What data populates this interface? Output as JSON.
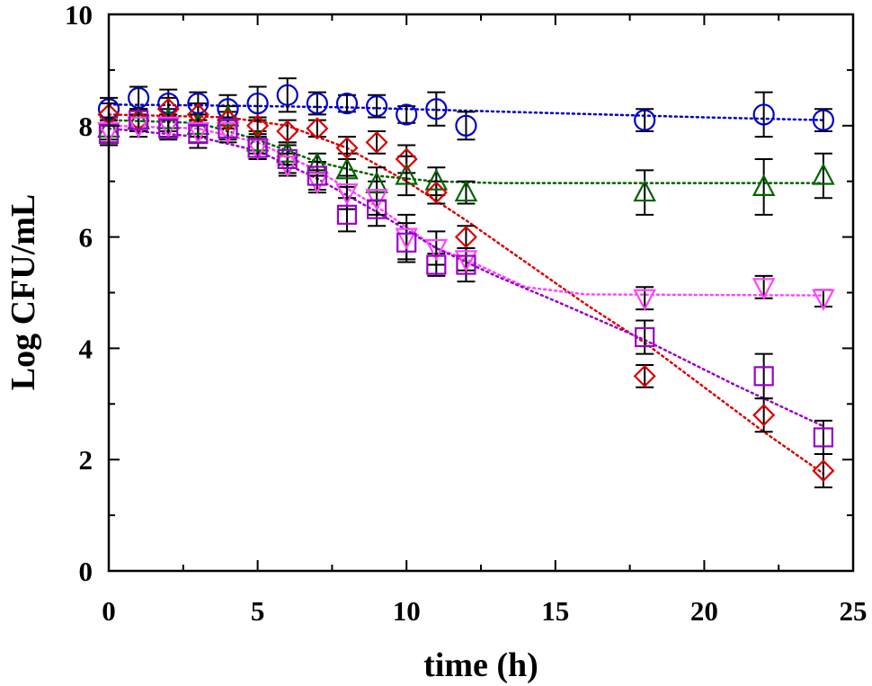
{
  "chart_data": {
    "type": "scatter",
    "title": "",
    "xlabel": "time (h)",
    "ylabel": "Log CFU/mL",
    "xlim": [
      0,
      25
    ],
    "ylim": [
      0,
      10
    ],
    "xticks": [
      0,
      5,
      10,
      15,
      20,
      25
    ],
    "yticks": [
      0,
      2,
      4,
      6,
      8,
      10
    ],
    "grid": false,
    "legend": "none",
    "series": [
      {
        "name": "circle series",
        "marker": "circle",
        "color": "#0000cc",
        "points": [
          {
            "x": 0,
            "y": 8.3,
            "err": 0.2
          },
          {
            "x": 1,
            "y": 8.5,
            "err": 0.2
          },
          {
            "x": 2,
            "y": 8.4,
            "err": 0.25
          },
          {
            "x": 3,
            "y": 8.4,
            "err": 0.2
          },
          {
            "x": 4,
            "y": 8.3,
            "err": 0.25
          },
          {
            "x": 5,
            "y": 8.4,
            "err": 0.3
          },
          {
            "x": 6,
            "y": 8.55,
            "err": 0.3
          },
          {
            "x": 7,
            "y": 8.4,
            "err": 0.2
          },
          {
            "x": 8,
            "y": 8.4,
            "err": 0.15
          },
          {
            "x": 9,
            "y": 8.35,
            "err": 0.2
          },
          {
            "x": 10,
            "y": 8.2,
            "err": 0.15
          },
          {
            "x": 11,
            "y": 8.3,
            "err": 0.3
          },
          {
            "x": 12,
            "y": 8.0,
            "err": 0.25
          },
          {
            "x": 18,
            "y": 8.1,
            "err": 0.2
          },
          {
            "x": 22,
            "y": 8.2,
            "err": 0.4
          },
          {
            "x": 24,
            "y": 8.1,
            "err": 0.2
          }
        ],
        "fit": [
          {
            "x": 0,
            "y": 8.38
          },
          {
            "x": 4,
            "y": 8.36
          },
          {
            "x": 8,
            "y": 8.33
          },
          {
            "x": 12,
            "y": 8.27
          },
          {
            "x": 16,
            "y": 8.21
          },
          {
            "x": 20,
            "y": 8.15
          },
          {
            "x": 24,
            "y": 8.1
          }
        ]
      },
      {
        "name": "triangle-up series",
        "marker": "triangle-up",
        "color": "#006400",
        "points": [
          {
            "x": 0,
            "y": 7.95,
            "err": 0.2
          },
          {
            "x": 1,
            "y": 8.1,
            "err": 0.2
          },
          {
            "x": 2,
            "y": 8.1,
            "err": 0.2
          },
          {
            "x": 3,
            "y": 8.0,
            "err": 0.2
          },
          {
            "x": 4,
            "y": 8.15,
            "err": 0.2
          },
          {
            "x": 5,
            "y": 7.7,
            "err": 0.2
          },
          {
            "x": 6,
            "y": 7.5,
            "err": 0.2
          },
          {
            "x": 7,
            "y": 7.3,
            "err": 0.2
          },
          {
            "x": 8,
            "y": 7.2,
            "err": 0.3
          },
          {
            "x": 9,
            "y": 6.95,
            "err": 0.3
          },
          {
            "x": 10,
            "y": 7.1,
            "err": 0.35
          },
          {
            "x": 11,
            "y": 7.0,
            "err": 0.25
          },
          {
            "x": 12,
            "y": 6.8,
            "err": 0.2
          },
          {
            "x": 18,
            "y": 6.8,
            "err": 0.4
          },
          {
            "x": 22,
            "y": 6.9,
            "err": 0.5
          },
          {
            "x": 24,
            "y": 7.1,
            "err": 0.4
          }
        ],
        "fit": [
          {
            "x": 0,
            "y": 8.1
          },
          {
            "x": 3,
            "y": 8.05
          },
          {
            "x": 5,
            "y": 7.75
          },
          {
            "x": 7,
            "y": 7.35
          },
          {
            "x": 9,
            "y": 7.1
          },
          {
            "x": 11,
            "y": 7.0
          },
          {
            "x": 13,
            "y": 6.97
          },
          {
            "x": 24,
            "y": 6.97
          }
        ]
      },
      {
        "name": "diamond series",
        "marker": "diamond",
        "color": "#dd0000",
        "points": [
          {
            "x": 0,
            "y": 8.2,
            "err": 0.2
          },
          {
            "x": 1,
            "y": 8.1,
            "err": 0.2
          },
          {
            "x": 2,
            "y": 8.3,
            "err": 0.2
          },
          {
            "x": 3,
            "y": 8.2,
            "err": 0.2
          },
          {
            "x": 4,
            "y": 8.1,
            "err": 0.15
          },
          {
            "x": 5,
            "y": 8.0,
            "err": 0.15
          },
          {
            "x": 6,
            "y": 7.9,
            "err": 0.2
          },
          {
            "x": 7,
            "y": 7.95,
            "err": 0.15
          },
          {
            "x": 8,
            "y": 7.6,
            "err": 0.2
          },
          {
            "x": 9,
            "y": 7.7,
            "err": 0.2
          },
          {
            "x": 10,
            "y": 7.4,
            "err": 0.25
          },
          {
            "x": 11,
            "y": 6.8,
            "err": 0.2
          },
          {
            "x": 12,
            "y": 6.0,
            "err": 0.2
          },
          {
            "x": 18,
            "y": 3.5,
            "err": 0.2
          },
          {
            "x": 22,
            "y": 2.8,
            "err": 0.3
          },
          {
            "x": 24,
            "y": 1.8,
            "err": 0.3
          }
        ],
        "fit": [
          {
            "x": 0,
            "y": 8.2
          },
          {
            "x": 4,
            "y": 8.15
          },
          {
            "x": 6,
            "y": 8.0
          },
          {
            "x": 8,
            "y": 7.6
          },
          {
            "x": 10,
            "y": 7.0
          },
          {
            "x": 12,
            "y": 6.3
          },
          {
            "x": 14,
            "y": 5.55
          },
          {
            "x": 16,
            "y": 4.8
          },
          {
            "x": 18,
            "y": 4.1
          },
          {
            "x": 20,
            "y": 3.3
          },
          {
            "x": 22,
            "y": 2.5
          },
          {
            "x": 24,
            "y": 1.75
          }
        ]
      },
      {
        "name": "triangle-down series",
        "marker": "triangle-down",
        "color": "#ff44ff",
        "points": [
          {
            "x": 0,
            "y": 7.9,
            "err": 0.2
          },
          {
            "x": 1,
            "y": 8.0,
            "err": 0.2
          },
          {
            "x": 2,
            "y": 8.0,
            "err": 0.2
          },
          {
            "x": 3,
            "y": 7.9,
            "err": 0.2
          },
          {
            "x": 4,
            "y": 7.9,
            "err": 0.2
          },
          {
            "x": 5,
            "y": 7.6,
            "err": 0.2
          },
          {
            "x": 6,
            "y": 7.3,
            "err": 0.2
          },
          {
            "x": 7,
            "y": 7.0,
            "err": 0.2
          },
          {
            "x": 8,
            "y": 6.8,
            "err": 0.3
          },
          {
            "x": 9,
            "y": 6.7,
            "err": 0.3
          },
          {
            "x": 10,
            "y": 6.0,
            "err": 0.4
          },
          {
            "x": 11,
            "y": 5.8,
            "err": 0.3
          },
          {
            "x": 12,
            "y": 5.6,
            "err": 0.2
          },
          {
            "x": 18,
            "y": 4.9,
            "err": 0.2
          },
          {
            "x": 22,
            "y": 5.1,
            "err": 0.2
          },
          {
            "x": 24,
            "y": 4.9,
            "err": 0.15
          }
        ],
        "fit": [
          {
            "x": 0,
            "y": 8.0
          },
          {
            "x": 3,
            "y": 7.95
          },
          {
            "x": 5,
            "y": 7.7
          },
          {
            "x": 7,
            "y": 7.2
          },
          {
            "x": 9,
            "y": 6.55
          },
          {
            "x": 11,
            "y": 5.8
          },
          {
            "x": 12,
            "y": 5.6
          },
          {
            "x": 14,
            "y": 5.1
          },
          {
            "x": 16,
            "y": 4.97
          },
          {
            "x": 24,
            "y": 4.95
          }
        ]
      },
      {
        "name": "square series",
        "marker": "square",
        "color": "#9900cc",
        "points": [
          {
            "x": 0,
            "y": 7.85,
            "err": 0.2
          },
          {
            "x": 1,
            "y": 8.1,
            "err": 0.2
          },
          {
            "x": 2,
            "y": 7.95,
            "err": 0.2
          },
          {
            "x": 3,
            "y": 7.85,
            "err": 0.25
          },
          {
            "x": 4,
            "y": 7.95,
            "err": 0.2
          },
          {
            "x": 5,
            "y": 7.6,
            "err": 0.2
          },
          {
            "x": 6,
            "y": 7.4,
            "err": 0.25
          },
          {
            "x": 7,
            "y": 7.1,
            "err": 0.25
          },
          {
            "x": 8,
            "y": 6.4,
            "err": 0.3
          },
          {
            "x": 9,
            "y": 6.5,
            "err": 0.3
          },
          {
            "x": 10,
            "y": 5.9,
            "err": 0.35
          },
          {
            "x": 11,
            "y": 5.5,
            "err": 0.2
          },
          {
            "x": 12,
            "y": 5.5,
            "err": 0.3
          },
          {
            "x": 18,
            "y": 4.2,
            "err": 0.3
          },
          {
            "x": 22,
            "y": 3.5,
            "err": 0.4
          },
          {
            "x": 24,
            "y": 2.4,
            "err": 0.3
          }
        ],
        "fit": [
          {
            "x": 0,
            "y": 7.95
          },
          {
            "x": 3,
            "y": 7.8
          },
          {
            "x": 5,
            "y": 7.55
          },
          {
            "x": 7,
            "y": 7.05
          },
          {
            "x": 9,
            "y": 6.45
          },
          {
            "x": 11,
            "y": 5.8
          },
          {
            "x": 13,
            "y": 5.3
          },
          {
            "x": 15,
            "y": 4.85
          },
          {
            "x": 18,
            "y": 4.15
          },
          {
            "x": 21,
            "y": 3.35
          },
          {
            "x": 24,
            "y": 2.6
          }
        ]
      }
    ]
  }
}
